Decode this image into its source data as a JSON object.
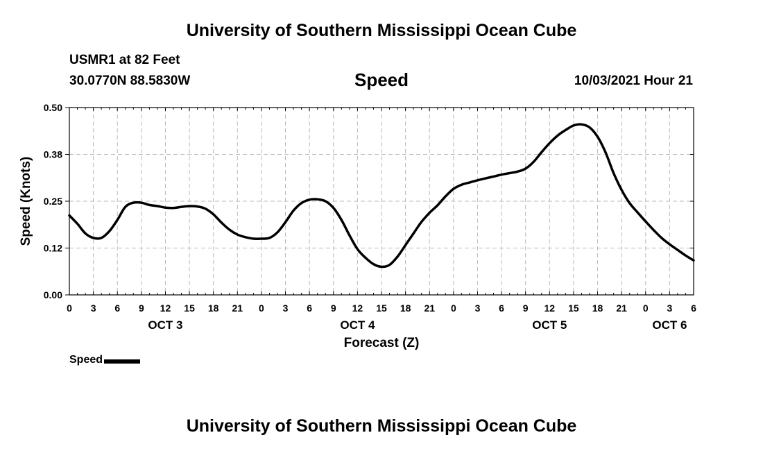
{
  "header": {
    "title_top": "University of Southern Mississippi Ocean Cube",
    "station": "USMR1 at 82 Feet",
    "coords": "30.0770N  88.5830W",
    "chart_title": "Speed",
    "date": "10/03/2021 Hour 21"
  },
  "footer": {
    "title_bottom": "University of Southern Mississippi Ocean Cube"
  },
  "legend": {
    "label": "Speed"
  },
  "colors": {
    "line": "#000000",
    "grid": "#bbbbbb",
    "axis": "#000000"
  },
  "chart_data": {
    "type": "line",
    "title": "Speed",
    "xlabel": "Forecast (Z)",
    "ylabel": "Speed (Knots)",
    "x_unit": "hours since OCT 3 00Z",
    "xlim": [
      0,
      78
    ],
    "ylim": [
      0,
      0.5
    ],
    "y_ticks": [
      0,
      0.125,
      0.25,
      0.375,
      0.5
    ],
    "y_tick_labels": [
      "0.00",
      "0.12",
      "0.25",
      "0.38",
      "0.50"
    ],
    "x_ticks": [
      0,
      3,
      6,
      9,
      12,
      15,
      18,
      21,
      24,
      27,
      30,
      33,
      36,
      39,
      42,
      45,
      48,
      51,
      54,
      57,
      60,
      63,
      66,
      69,
      72,
      75,
      78
    ],
    "x_tick_labels": [
      "0",
      "3",
      "6",
      "9",
      "12",
      "15",
      "18",
      "21",
      "0",
      "3",
      "6",
      "9",
      "12",
      "15",
      "18",
      "21",
      "0",
      "3",
      "6",
      "9",
      "12",
      "15",
      "18",
      "21",
      "0",
      "3",
      "6"
    ],
    "day_labels": [
      {
        "x": 12,
        "label": "OCT 3"
      },
      {
        "x": 36,
        "label": "OCT 4"
      },
      {
        "x": 60,
        "label": "OCT 5"
      },
      {
        "x": 75,
        "label": "OCT 6"
      }
    ],
    "grid": true,
    "series": [
      {
        "name": "Speed",
        "x": [
          0,
          1,
          2,
          3,
          4,
          5,
          6,
          7,
          8,
          9,
          10,
          11,
          12,
          13,
          14,
          15,
          16,
          17,
          18,
          19,
          20,
          21,
          22,
          23,
          24,
          25,
          26,
          27,
          28,
          29,
          30,
          31,
          32,
          33,
          34,
          35,
          36,
          37,
          38,
          39,
          40,
          41,
          42,
          43,
          44,
          45,
          46,
          47,
          48,
          49,
          50,
          51,
          52,
          53,
          54,
          55,
          56,
          57,
          58,
          59,
          60,
          61,
          62,
          63,
          64,
          65,
          66,
          67,
          68,
          69,
          70,
          71,
          72,
          73,
          74,
          75,
          76,
          77,
          78
        ],
        "values": [
          0.212,
          0.19,
          0.164,
          0.152,
          0.152,
          0.17,
          0.2,
          0.235,
          0.246,
          0.246,
          0.24,
          0.237,
          0.233,
          0.232,
          0.235,
          0.237,
          0.236,
          0.23,
          0.215,
          0.193,
          0.174,
          0.161,
          0.154,
          0.15,
          0.15,
          0.152,
          0.167,
          0.194,
          0.225,
          0.245,
          0.254,
          0.255,
          0.25,
          0.232,
          0.2,
          0.159,
          0.122,
          0.099,
          0.082,
          0.075,
          0.08,
          0.102,
          0.133,
          0.164,
          0.195,
          0.219,
          0.239,
          0.263,
          0.283,
          0.294,
          0.3,
          0.306,
          0.311,
          0.316,
          0.321,
          0.325,
          0.329,
          0.337,
          0.355,
          0.381,
          0.405,
          0.425,
          0.44,
          0.452,
          0.455,
          0.447,
          0.422,
          0.38,
          0.325,
          0.28,
          0.245,
          0.22,
          0.196,
          0.173,
          0.152,
          0.135,
          0.12,
          0.105,
          0.092
        ]
      }
    ]
  }
}
